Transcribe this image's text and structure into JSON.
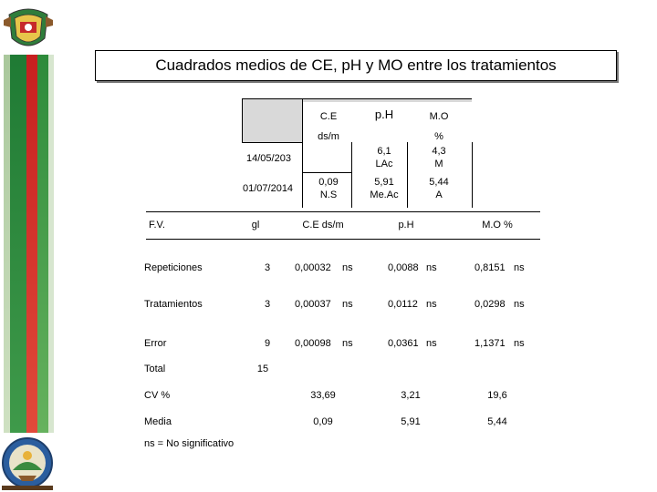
{
  "title": "Cuadrados medios de CE, pH y MO entre los tratamientos",
  "upper": {
    "col_ce": "C.E",
    "col_ph": "p.H",
    "col_mo": "M.O",
    "unit_ce": "ds/m",
    "unit_mo": "%",
    "date1": "14/05/203",
    "date2": "01/07/2014",
    "ce_val": "0,09",
    "ce_sig": "N.S",
    "ph_1": "6,1",
    "ph_2": "LAc",
    "ph_3": "5,91",
    "ph_4": "Me.Ac",
    "mo_1": "4,3",
    "mo_2": "M",
    "mo_3": "5,44",
    "mo_4": "A"
  },
  "table": {
    "headers": [
      "F.V.",
      "gl",
      "C.E ds/m",
      "p.H",
      "M.O %"
    ],
    "rows": [
      {
        "fv": "Repeticiones",
        "gl": "3",
        "ce": "0,00032",
        "ce_sig": "ns",
        "ph": "0,0088",
        "ph_sig": "ns",
        "mo": "0,8151",
        "mo_sig": "ns"
      },
      {
        "fv": "Tratamientos",
        "gl": "3",
        "ce": "0,00037",
        "ce_sig": "ns",
        "ph": "0,0112",
        "ph_sig": "ns",
        "mo": "0,0298",
        "mo_sig": "ns"
      },
      {
        "fv": "Error",
        "gl": "9",
        "ce": "0,00098",
        "ce_sig": "ns",
        "ph": "0,0361",
        "ph_sig": "ns",
        "mo": "1,1371",
        "mo_sig": "ns"
      }
    ],
    "total_label": "Total",
    "total_gl": "15",
    "cv_label": "CV %",
    "cv": [
      "33,69",
      "3,21",
      "19,6"
    ],
    "media_label": "Media",
    "media": [
      "0,09",
      "5,91",
      "5,44"
    ],
    "footnote": "ns = No significativo"
  },
  "colors": {
    "green": "#1f7a34",
    "red": "#c61f1f",
    "light_green": "#a9c79b",
    "shade": "#d9d9d9"
  },
  "icons": [
    "university-crest-icon",
    "faculty-emblem-icon"
  ]
}
